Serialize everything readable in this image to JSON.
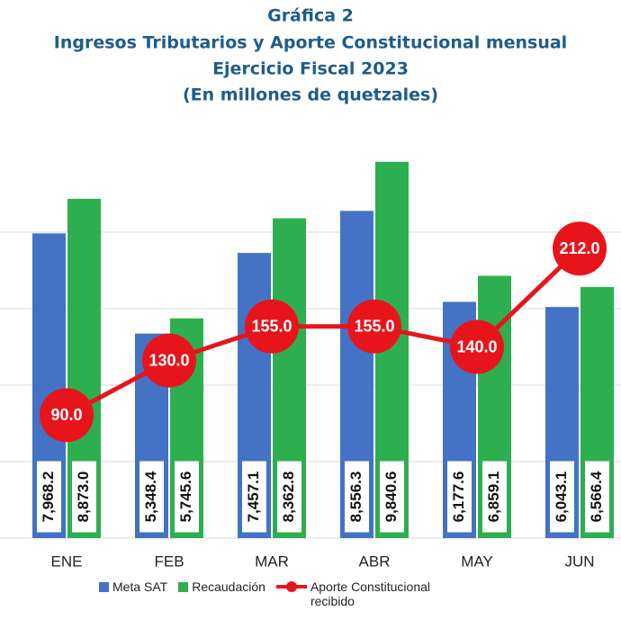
{
  "chart_data": {
    "type": "bar",
    "title": "Gráfica 2",
    "subtitle": [
      "Ingresos Tributarios y Aporte Constitucional mensual",
      "Ejercicio Fiscal 2023",
      "(En millones de quetzales)"
    ],
    "categories": [
      "ENE",
      "FEB",
      "MAR",
      "ABR",
      "MAY",
      "JUN"
    ],
    "series": [
      {
        "name": "Meta SAT",
        "type": "bar",
        "color": "#4472c4",
        "values": [
          7968.2,
          5348.4,
          7457.1,
          8556.3,
          6177.6,
          6043.1
        ],
        "value_labels": [
          "7,968.2",
          "5,348.4",
          "7,457.1",
          "8,556.3",
          "6,177.6",
          "6,043.1"
        ]
      },
      {
        "name": "Recaudación",
        "type": "bar",
        "color": "#2eaf4f",
        "values": [
          8873.0,
          5745.6,
          8362.8,
          9840.6,
          6859.1,
          6566.4
        ],
        "value_labels": [
          "8,873.0",
          "5,745.6",
          "8,362.8",
          "9,840.6",
          "6,859.1",
          "6,566.4"
        ]
      },
      {
        "name": "Aporte Constitucional recibido",
        "type": "line",
        "axis": "y2",
        "color": "#e8141c",
        "values": [
          90,
          130,
          155,
          155,
          140,
          212
        ],
        "value_labels": [
          "90.0",
          "130.0",
          "155.0",
          "155.0",
          "140.0",
          "212.0"
        ]
      }
    ],
    "ylim": [
      0,
      10000
    ],
    "yticks": [
      0,
      2000,
      4000,
      6000,
      8000
    ],
    "y2lim": [
      0,
      280
    ],
    "grid": true
  }
}
